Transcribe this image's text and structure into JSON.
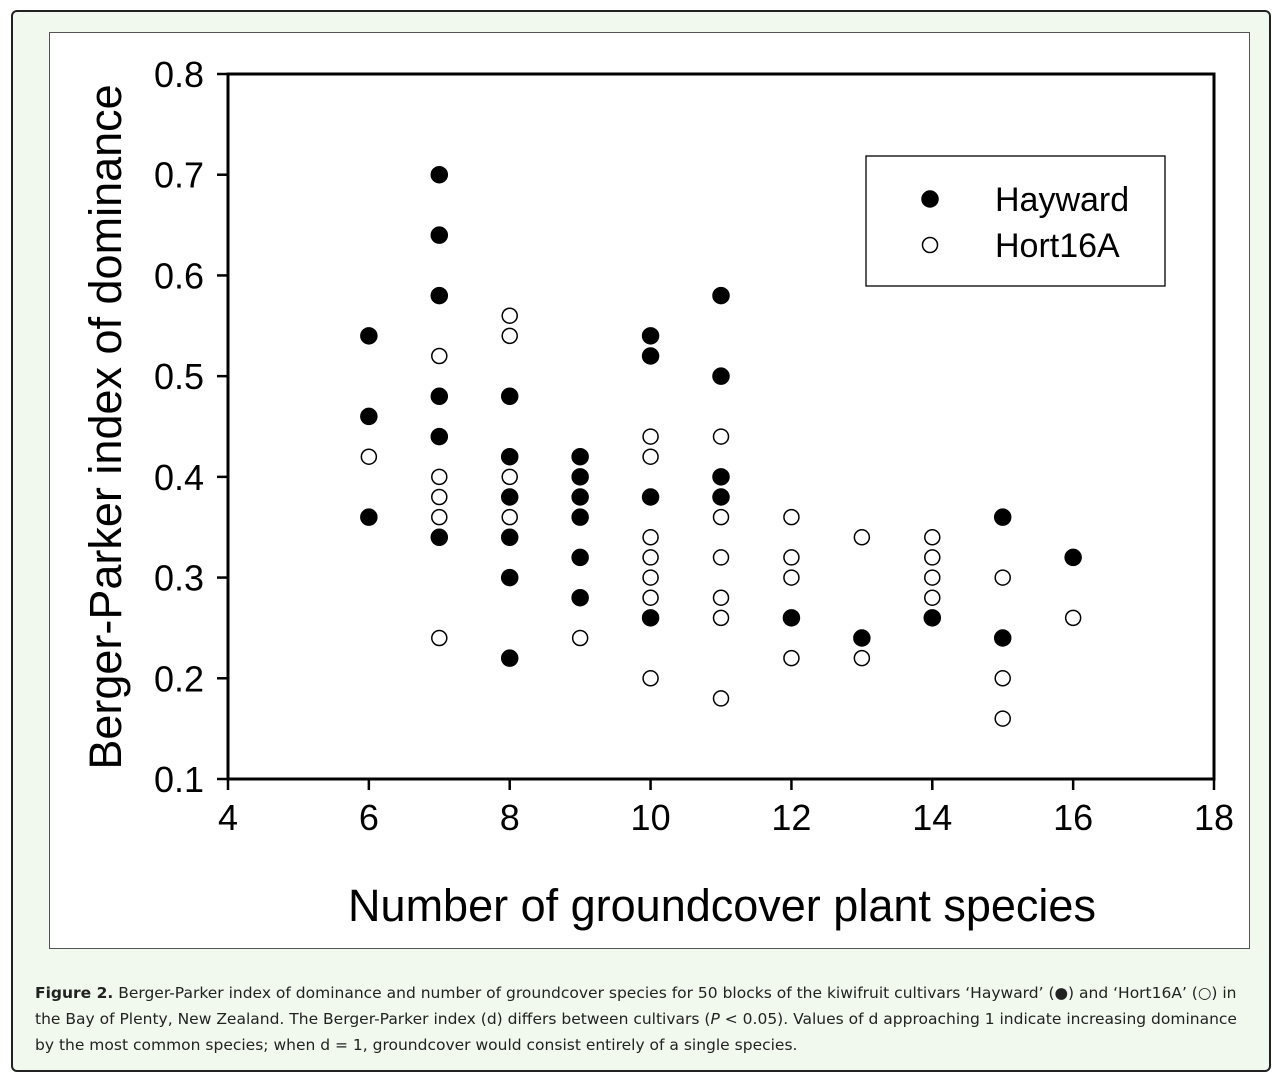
{
  "chart_data": {
    "type": "scatter",
    "xlabel": "Number of groundcover plant species",
    "ylabel": "Berger-Parker index of dominance",
    "xlim": [
      4,
      18
    ],
    "ylim": [
      0.1,
      0.8
    ],
    "xticks": [
      4,
      6,
      8,
      10,
      12,
      14,
      16,
      18
    ],
    "yticks": [
      0.1,
      0.2,
      0.3,
      0.4,
      0.5,
      0.6,
      0.7,
      0.8
    ],
    "grid": false,
    "legend_position": "top-right",
    "series": [
      {
        "name": "Hayward",
        "marker": "filled-circle",
        "color": "#000000",
        "points": [
          [
            6,
            0.54
          ],
          [
            6,
            0.46
          ],
          [
            6,
            0.36
          ],
          [
            7,
            0.7
          ],
          [
            7,
            0.64
          ],
          [
            7,
            0.58
          ],
          [
            7,
            0.48
          ],
          [
            7,
            0.44
          ],
          [
            7,
            0.34
          ],
          [
            8,
            0.48
          ],
          [
            8,
            0.42
          ],
          [
            8,
            0.38
          ],
          [
            8,
            0.34
          ],
          [
            8,
            0.3
          ],
          [
            8,
            0.22
          ],
          [
            9,
            0.42
          ],
          [
            9,
            0.4
          ],
          [
            9,
            0.38
          ],
          [
            9,
            0.36
          ],
          [
            9,
            0.32
          ],
          [
            9,
            0.28
          ],
          [
            10,
            0.54
          ],
          [
            10,
            0.52
          ],
          [
            10,
            0.38
          ],
          [
            10,
            0.26
          ],
          [
            11,
            0.58
          ],
          [
            11,
            0.5
          ],
          [
            11,
            0.4
          ],
          [
            11,
            0.38
          ],
          [
            12,
            0.26
          ],
          [
            13,
            0.24
          ],
          [
            14,
            0.26
          ],
          [
            15,
            0.36
          ],
          [
            15,
            0.24
          ],
          [
            16,
            0.32
          ]
        ]
      },
      {
        "name": "Hort16A",
        "marker": "open-circle",
        "color": "#000000",
        "points": [
          [
            6,
            0.42
          ],
          [
            7,
            0.52
          ],
          [
            7,
            0.4
          ],
          [
            7,
            0.38
          ],
          [
            7,
            0.36
          ],
          [
            7,
            0.24
          ],
          [
            8,
            0.56
          ],
          [
            8,
            0.54
          ],
          [
            8,
            0.4
          ],
          [
            8,
            0.36
          ],
          [
            9,
            0.24
          ],
          [
            10,
            0.44
          ],
          [
            10,
            0.42
          ],
          [
            10,
            0.34
          ],
          [
            10,
            0.32
          ],
          [
            10,
            0.3
          ],
          [
            10,
            0.28
          ],
          [
            10,
            0.2
          ],
          [
            11,
            0.44
          ],
          [
            11,
            0.36
          ],
          [
            11,
            0.32
          ],
          [
            11,
            0.28
          ],
          [
            11,
            0.26
          ],
          [
            11,
            0.18
          ],
          [
            12,
            0.36
          ],
          [
            12,
            0.32
          ],
          [
            12,
            0.3
          ],
          [
            12,
            0.22
          ],
          [
            13,
            0.34
          ],
          [
            13,
            0.22
          ],
          [
            14,
            0.34
          ],
          [
            14,
            0.32
          ],
          [
            14,
            0.3
          ],
          [
            14,
            0.28
          ],
          [
            15,
            0.3
          ],
          [
            15,
            0.2
          ],
          [
            15,
            0.16
          ],
          [
            16,
            0.26
          ]
        ]
      }
    ]
  },
  "caption": {
    "label": "Figure 2.",
    "text_1": " Berger-Parker index of dominance and number of groundcover species for 50 blocks of the kiwifruit cultivars ‘Hayward’ (●) and ‘Hort16A’ (○) in the Bay of Plenty, New Zealand. The Berger-Parker index (d) differs between cultivars (",
    "p_symbol": "P",
    "text_2": " < 0.05). Values of d approaching 1 indicate increasing dominance by the most common species; when d = 1, groundcover would consist entirely of a single species."
  },
  "colors": {
    "figure_background": "#f1f9ee",
    "caption_label": "#222222"
  }
}
